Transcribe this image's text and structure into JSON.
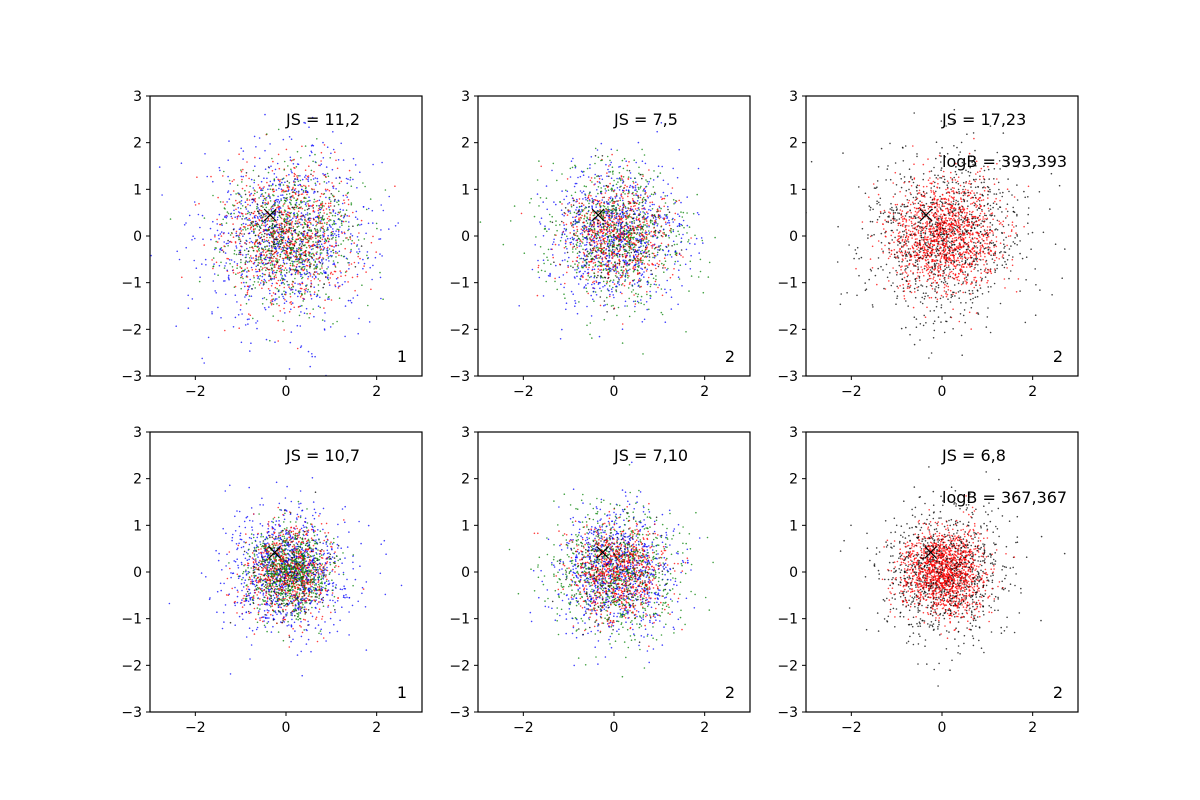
{
  "figure": {
    "background": "#ffffff"
  },
  "chart_data": [
    {
      "type": "scatter",
      "xlim": [
        -3,
        3
      ],
      "ylim": [
        -3,
        3
      ],
      "xticks": [
        -2,
        0,
        2
      ],
      "yticks": [
        -3,
        -2,
        -1,
        0,
        1,
        2,
        3
      ],
      "xtick_labels": [
        "−2",
        "0",
        "2"
      ],
      "ytick_labels": [
        "−3",
        "−2",
        "−1",
        "0",
        "1",
        "2",
        "3"
      ],
      "grid": false,
      "annotations": [
        "JS = 11,2"
      ],
      "corner_label": "1",
      "marker": {
        "x": -0.35,
        "y": 0.45,
        "symbol": "x",
        "color": "#000000"
      },
      "clouds": [
        {
          "color": "#0000ff",
          "sigma": 0.95,
          "count": 900
        },
        {
          "color": "#ff0000",
          "sigma": 0.75,
          "count": 800
        },
        {
          "color": "#008000",
          "sigma": 0.7,
          "count": 800
        },
        {
          "color": "#000000",
          "sigma": 0.55,
          "count": 200
        }
      ]
    },
    {
      "type": "scatter",
      "xlim": [
        -3,
        3
      ],
      "ylim": [
        -3,
        3
      ],
      "xticks": [
        -2,
        0,
        2
      ],
      "yticks": [
        -3,
        -2,
        -1,
        0,
        1,
        2,
        3
      ],
      "xtick_labels": [
        "−2",
        "0",
        "2"
      ],
      "ytick_labels": [
        "−3",
        "−2",
        "−1",
        "0",
        "1",
        "2",
        "3"
      ],
      "grid": false,
      "annotations": [
        "JS = 7,5"
      ],
      "corner_label": "2",
      "marker": {
        "x": -0.35,
        "y": 0.45,
        "symbol": "x",
        "color": "#000000"
      },
      "clouds": [
        {
          "color": "#0000ff",
          "sigma": 0.75,
          "count": 800
        },
        {
          "color": "#008000",
          "sigma": 0.75,
          "count": 800
        },
        {
          "color": "#ff0000",
          "sigma": 0.6,
          "count": 700
        },
        {
          "color": "#000000",
          "sigma": 0.55,
          "count": 200
        }
      ]
    },
    {
      "type": "scatter",
      "xlim": [
        -3,
        3
      ],
      "ylim": [
        -3,
        3
      ],
      "xticks": [
        -2,
        0,
        2
      ],
      "yticks": [
        -3,
        -2,
        -1,
        0,
        1,
        2,
        3
      ],
      "xtick_labels": [
        "−2",
        "0",
        "2"
      ],
      "ytick_labels": [
        "−3",
        "−2",
        "−1",
        "0",
        "1",
        "2",
        "3"
      ],
      "grid": false,
      "annotations": [
        "JS = 17,23",
        "logB = 393,393"
      ],
      "corner_label": "2",
      "marker": {
        "x": -0.35,
        "y": 0.45,
        "symbol": "x",
        "color": "#000000"
      },
      "clouds": [
        {
          "color": "#000000",
          "sigma": 0.9,
          "count": 1100
        },
        {
          "color": "#ff0000",
          "sigma": 0.6,
          "count": 1400
        }
      ]
    },
    {
      "type": "scatter",
      "xlim": [
        -3,
        3
      ],
      "ylim": [
        -3,
        3
      ],
      "xticks": [
        -2,
        0,
        2
      ],
      "yticks": [
        -3,
        -2,
        -1,
        0,
        1,
        2,
        3
      ],
      "xtick_labels": [
        "−2",
        "0",
        "2"
      ],
      "ytick_labels": [
        "−3",
        "−2",
        "−1",
        "0",
        "1",
        "2",
        "3"
      ],
      "grid": false,
      "annotations": [
        "JS = 10,7"
      ],
      "corner_label": "1",
      "marker": {
        "x": -0.25,
        "y": 0.42,
        "symbol": "x",
        "color": "#000000"
      },
      "clouds": [
        {
          "color": "#0000ff",
          "sigma": 0.7,
          "count": 900
        },
        {
          "color": "#ff0000",
          "sigma": 0.5,
          "count": 700
        },
        {
          "color": "#008000",
          "sigma": 0.45,
          "count": 900
        },
        {
          "color": "#000000",
          "sigma": 0.5,
          "count": 200
        }
      ]
    },
    {
      "type": "scatter",
      "xlim": [
        -3,
        3
      ],
      "ylim": [
        -3,
        3
      ],
      "xticks": [
        -2,
        0,
        2
      ],
      "yticks": [
        -3,
        -2,
        -1,
        0,
        1,
        2,
        3
      ],
      "xtick_labels": [
        "−2",
        "0",
        "2"
      ],
      "ytick_labels": [
        "−3",
        "−2",
        "−1",
        "0",
        "1",
        "2",
        "3"
      ],
      "grid": false,
      "annotations": [
        "JS = 7,10"
      ],
      "corner_label": "2",
      "marker": {
        "x": -0.25,
        "y": 0.42,
        "symbol": "x",
        "color": "#000000"
      },
      "clouds": [
        {
          "color": "#0000ff",
          "sigma": 0.7,
          "count": 800
        },
        {
          "color": "#008000",
          "sigma": 0.7,
          "count": 800
        },
        {
          "color": "#ff0000",
          "sigma": 0.5,
          "count": 800
        },
        {
          "color": "#000000",
          "sigma": 0.5,
          "count": 200
        }
      ]
    },
    {
      "type": "scatter",
      "xlim": [
        -3,
        3
      ],
      "ylim": [
        -3,
        3
      ],
      "xticks": [
        -2,
        0,
        2
      ],
      "yticks": [
        -3,
        -2,
        -1,
        0,
        1,
        2,
        3
      ],
      "xtick_labels": [
        "−2",
        "0",
        "2"
      ],
      "ytick_labels": [
        "−3",
        "−2",
        "−1",
        "0",
        "1",
        "2",
        "3"
      ],
      "grid": false,
      "annotations": [
        "JS = 6,8",
        "logB = 367,367"
      ],
      "corner_label": "2",
      "marker": {
        "x": -0.25,
        "y": 0.42,
        "symbol": "x",
        "color": "#000000"
      },
      "clouds": [
        {
          "color": "#000000",
          "sigma": 0.7,
          "count": 1000
        },
        {
          "color": "#ff0000",
          "sigma": 0.45,
          "count": 1500
        }
      ]
    }
  ]
}
